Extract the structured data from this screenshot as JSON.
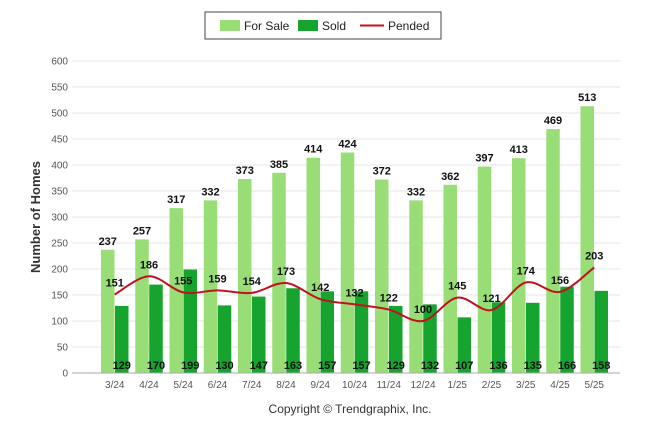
{
  "chart_data": {
    "type": "bar",
    "categories": [
      "3/24",
      "4/24",
      "5/24",
      "6/24",
      "7/24",
      "8/24",
      "9/24",
      "10/24",
      "11/24",
      "12/24",
      "1/25",
      "2/25",
      "3/25",
      "4/25",
      "5/25"
    ],
    "series": [
      {
        "name": "For Sale",
        "kind": "bar",
        "color": "#99dd77",
        "values": [
          237,
          257,
          317,
          332,
          373,
          385,
          414,
          424,
          372,
          332,
          362,
          397,
          413,
          469,
          513
        ]
      },
      {
        "name": "Sold",
        "kind": "bar",
        "color": "#16a32e",
        "values": [
          129,
          170,
          199,
          130,
          147,
          163,
          157,
          157,
          129,
          132,
          107,
          136,
          135,
          166,
          158
        ]
      },
      {
        "name": "Pended",
        "kind": "line",
        "color": "#c0121e",
        "values": [
          151,
          186,
          155,
          159,
          154,
          173,
          142,
          132,
          122,
          100,
          145,
          121,
          174,
          156,
          203
        ]
      }
    ],
    "ylabel": "Number of Homes",
    "ylim": [
      0,
      600
    ],
    "yticks": [
      0,
      50,
      100,
      150,
      200,
      250,
      300,
      350,
      400,
      450,
      500,
      550,
      600
    ],
    "grid": true,
    "legend": "top-center",
    "footer": "Copyright © Trendgraphix, Inc."
  }
}
